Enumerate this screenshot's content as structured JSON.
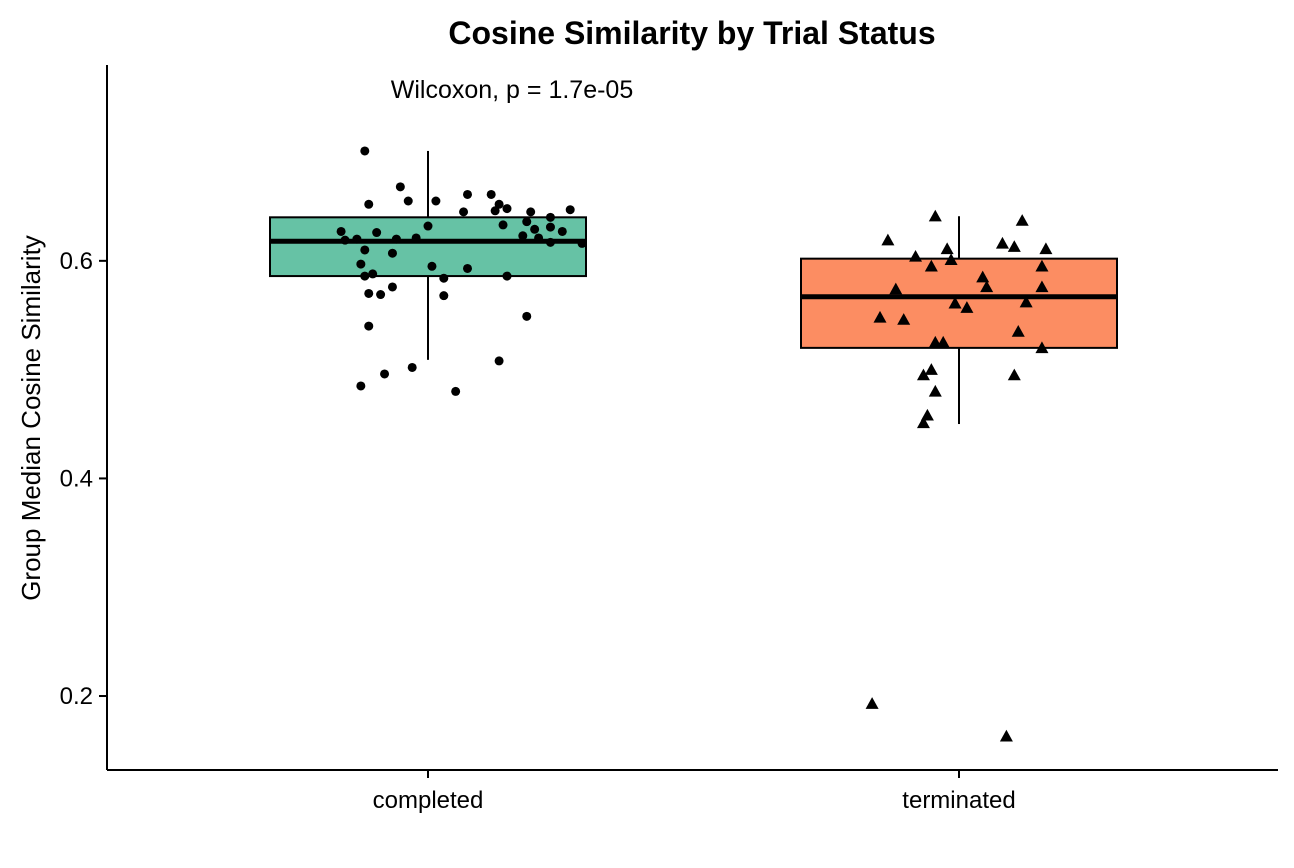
{
  "chart_data": {
    "type": "box",
    "title": "Cosine Similarity by Trial Status",
    "xlabel": "",
    "ylabel": "Group Median Cosine Similarity",
    "annotation": "Wilcoxon, p = 1.7e-05",
    "ylim": [
      0.132,
      0.78
    ],
    "yticks": [
      0.2,
      0.4,
      0.6
    ],
    "ytick_labels": [
      "0.2",
      "0.4",
      "0.6"
    ],
    "grid": false,
    "categories": [
      "completed",
      "terminated"
    ],
    "groups": [
      {
        "category": "completed",
        "color": "#66C2A5",
        "marker": "circle",
        "box": {
          "whisker_low": 0.509,
          "q1": 0.586,
          "median": 0.618,
          "q3": 0.64,
          "whisker_high": 0.701
        },
        "points": [
          [
            -0.16,
            0.701
          ],
          [
            -0.15,
            0.652
          ],
          [
            -0.07,
            0.668
          ],
          [
            -0.05,
            0.655
          ],
          [
            0.02,
            0.655
          ],
          [
            0.1,
            0.661
          ],
          [
            0.16,
            0.661
          ],
          [
            0.18,
            0.652
          ],
          [
            0.2,
            0.648
          ],
          [
            0.17,
            0.646
          ],
          [
            0.09,
            0.645
          ],
          [
            0.26,
            0.645
          ],
          [
            0.36,
            0.647
          ],
          [
            0.31,
            0.64
          ],
          [
            0.25,
            0.636
          ],
          [
            -0.22,
            0.627
          ],
          [
            -0.13,
            0.626
          ],
          [
            0.0,
            0.632
          ],
          [
            0.19,
            0.633
          ],
          [
            0.31,
            0.631
          ],
          [
            0.27,
            0.629
          ],
          [
            0.34,
            0.627
          ],
          [
            -0.18,
            0.62
          ],
          [
            -0.21,
            0.619
          ],
          [
            -0.08,
            0.62
          ],
          [
            -0.03,
            0.621
          ],
          [
            0.24,
            0.623
          ],
          [
            0.28,
            0.621
          ],
          [
            0.31,
            0.617
          ],
          [
            0.39,
            0.616
          ],
          [
            -0.16,
            0.61
          ],
          [
            -0.09,
            0.607
          ],
          [
            -0.17,
            0.597
          ],
          [
            0.01,
            0.595
          ],
          [
            0.1,
            0.593
          ],
          [
            -0.14,
            0.588
          ],
          [
            -0.16,
            0.586
          ],
          [
            0.04,
            0.584
          ],
          [
            0.2,
            0.586
          ],
          [
            -0.09,
            0.576
          ],
          [
            -0.15,
            0.57
          ],
          [
            -0.12,
            0.569
          ],
          [
            0.04,
            0.568
          ],
          [
            0.25,
            0.549
          ],
          [
            -0.15,
            0.54
          ],
          [
            0.18,
            0.508
          ],
          [
            -0.04,
            0.502
          ],
          [
            -0.11,
            0.496
          ],
          [
            -0.17,
            0.485
          ],
          [
            0.07,
            0.48
          ]
        ]
      },
      {
        "category": "terminated",
        "color": "#FC8D62",
        "marker": "triangle",
        "box": {
          "whisker_low": 0.45,
          "q1": 0.52,
          "median": 0.567,
          "q3": 0.602,
          "whisker_high": 0.641
        },
        "points": [
          [
            -0.06,
            0.641
          ],
          [
            0.16,
            0.637
          ],
          [
            -0.18,
            0.619
          ],
          [
            -0.03,
            0.611
          ],
          [
            0.11,
            0.616
          ],
          [
            0.14,
            0.613
          ],
          [
            0.22,
            0.611
          ],
          [
            -0.11,
            0.604
          ],
          [
            -0.02,
            0.601
          ],
          [
            -0.07,
            0.595
          ],
          [
            0.21,
            0.595
          ],
          [
            0.06,
            0.585
          ],
          [
            0.07,
            0.576
          ],
          [
            -0.16,
            0.574
          ],
          [
            0.21,
            0.576
          ],
          [
            0.17,
            0.562
          ],
          [
            -0.01,
            0.561
          ],
          [
            0.02,
            0.557
          ],
          [
            -0.2,
            0.548
          ],
          [
            -0.14,
            0.546
          ],
          [
            0.15,
            0.535
          ],
          [
            -0.06,
            0.525
          ],
          [
            -0.04,
            0.525
          ],
          [
            0.21,
            0.52
          ],
          [
            -0.09,
            0.495
          ],
          [
            -0.07,
            0.5
          ],
          [
            0.14,
            0.495
          ],
          [
            -0.06,
            0.48
          ],
          [
            -0.08,
            0.458
          ],
          [
            -0.09,
            0.451
          ],
          [
            -0.22,
            0.193
          ],
          [
            0.12,
            0.163
          ]
        ]
      }
    ]
  }
}
